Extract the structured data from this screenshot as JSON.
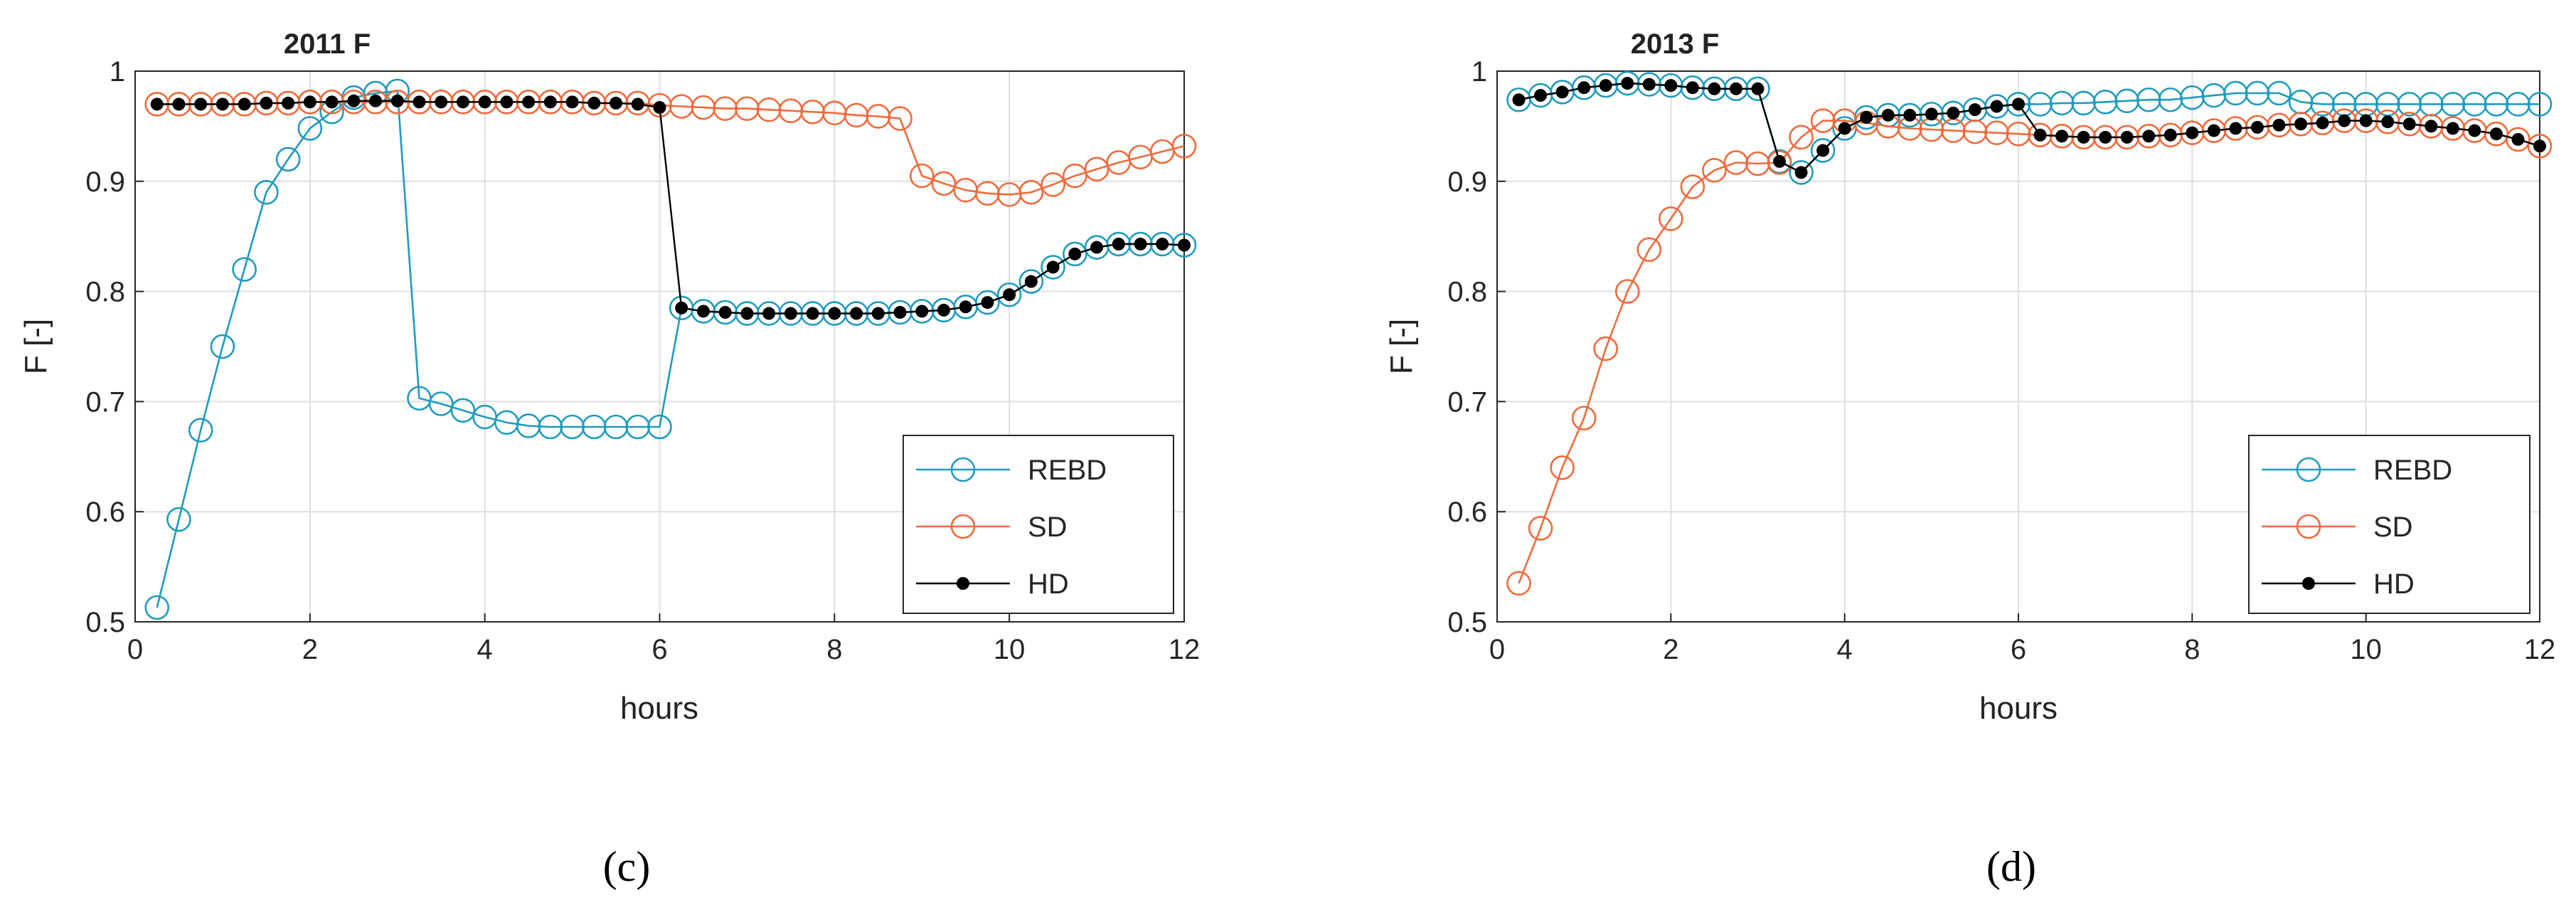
{
  "chart_data": [
    {
      "type": "line",
      "panel_label": "(c)",
      "title": "2011 F",
      "xlabel": "hours",
      "ylabel": "F [-]",
      "xlim": [
        0,
        12
      ],
      "ylim": [
        0.5,
        1
      ],
      "xticks": [
        0,
        2,
        4,
        6,
        8,
        10,
        12
      ],
      "yticks": [
        0.5,
        0.6,
        0.7,
        0.8,
        0.9,
        1
      ],
      "ytick_labels": [
        "0.5",
        "0.6",
        "0.7",
        "0.8",
        "0.9",
        "1"
      ],
      "grid": true,
      "legend_position": "lower-right",
      "x": [
        0.25,
        0.5,
        0.75,
        1.0,
        1.25,
        1.5,
        1.75,
        2.0,
        2.25,
        2.5,
        2.75,
        3.0,
        3.25,
        3.5,
        3.75,
        4.0,
        4.25,
        4.5,
        4.75,
        5.0,
        5.25,
        5.5,
        5.75,
        6.0,
        6.25,
        6.5,
        6.75,
        7.0,
        7.25,
        7.5,
        7.75,
        8.0,
        8.25,
        8.5,
        8.75,
        9.0,
        9.25,
        9.5,
        9.75,
        10.0,
        10.25,
        10.5,
        10.75,
        11.0,
        11.25,
        11.5,
        11.75,
        12.0
      ],
      "series": [
        {
          "name": "REBD",
          "color": "#1f9bbd",
          "marker": "circle-open",
          "values": [
            0.513,
            0.593,
            0.674,
            0.75,
            0.82,
            0.89,
            0.92,
            0.948,
            0.963,
            0.976,
            0.98,
            0.982,
            0.703,
            0.698,
            0.692,
            0.686,
            0.681,
            0.678,
            0.677,
            0.677,
            0.677,
            0.677,
            0.677,
            0.677,
            0.785,
            0.782,
            0.781,
            0.78,
            0.78,
            0.78,
            0.78,
            0.78,
            0.78,
            0.78,
            0.781,
            0.782,
            0.783,
            0.786,
            0.79,
            0.797,
            0.809,
            0.822,
            0.834,
            0.84,
            0.843,
            0.843,
            0.843,
            0.842
          ]
        },
        {
          "name": "SD",
          "color": "#ef6a3c",
          "marker": "circle-open",
          "values": [
            0.97,
            0.97,
            0.97,
            0.97,
            0.97,
            0.971,
            0.971,
            0.972,
            0.972,
            0.972,
            0.972,
            0.972,
            0.972,
            0.972,
            0.972,
            0.972,
            0.972,
            0.972,
            0.972,
            0.972,
            0.971,
            0.971,
            0.971,
            0.969,
            0.968,
            0.967,
            0.966,
            0.966,
            0.965,
            0.964,
            0.963,
            0.962,
            0.96,
            0.959,
            0.957,
            0.905,
            0.898,
            0.892,
            0.889,
            0.888,
            0.89,
            0.897,
            0.905,
            0.911,
            0.917,
            0.922,
            0.927,
            0.932
          ]
        },
        {
          "name": "HD",
          "color": "#000000",
          "marker": "dot",
          "values": [
            0.97,
            0.97,
            0.97,
            0.97,
            0.97,
            0.971,
            0.971,
            0.972,
            0.972,
            0.973,
            0.973,
            0.973,
            0.972,
            0.972,
            0.972,
            0.972,
            0.972,
            0.972,
            0.972,
            0.972,
            0.971,
            0.971,
            0.97,
            0.967,
            0.785,
            0.782,
            0.781,
            0.78,
            0.78,
            0.78,
            0.78,
            0.78,
            0.78,
            0.78,
            0.781,
            0.782,
            0.783,
            0.786,
            0.79,
            0.797,
            0.809,
            0.822,
            0.834,
            0.84,
            0.843,
            0.843,
            0.843,
            0.842
          ]
        }
      ]
    },
    {
      "type": "line",
      "panel_label": "(d)",
      "title": "2013 F",
      "xlabel": "hours",
      "ylabel": "F [-]",
      "xlim": [
        0,
        12
      ],
      "ylim": [
        0.5,
        1
      ],
      "xticks": [
        0,
        2,
        4,
        6,
        8,
        10,
        12
      ],
      "yticks": [
        0.5,
        0.6,
        0.7,
        0.8,
        0.9,
        1
      ],
      "ytick_labels": [
        "0.5",
        "0.6",
        "0.7",
        "0.8",
        "0.9",
        "1"
      ],
      "grid": true,
      "legend_position": "lower-right",
      "x": [
        0.25,
        0.5,
        0.75,
        1.0,
        1.25,
        1.5,
        1.75,
        2.0,
        2.25,
        2.5,
        2.75,
        3.0,
        3.25,
        3.5,
        3.75,
        4.0,
        4.25,
        4.5,
        4.75,
        5.0,
        5.25,
        5.5,
        5.75,
        6.0,
        6.25,
        6.5,
        6.75,
        7.0,
        7.25,
        7.5,
        7.75,
        8.0,
        8.25,
        8.5,
        8.75,
        9.0,
        9.25,
        9.5,
        9.75,
        10.0,
        10.25,
        10.5,
        10.75,
        11.0,
        11.25,
        11.5,
        11.75,
        12.0
      ],
      "series": [
        {
          "name": "REBD",
          "color": "#1f9bbd",
          "marker": "circle-open",
          "values": [
            0.974,
            0.978,
            0.981,
            0.985,
            0.987,
            0.989,
            0.988,
            0.987,
            0.985,
            0.984,
            0.984,
            0.984,
            0.918,
            0.908,
            0.928,
            0.948,
            0.958,
            0.96,
            0.96,
            0.961,
            0.962,
            0.965,
            0.968,
            0.97,
            0.97,
            0.971,
            0.971,
            0.972,
            0.973,
            0.974,
            0.974,
            0.976,
            0.978,
            0.98,
            0.98,
            0.98,
            0.972,
            0.97,
            0.97,
            0.97,
            0.97,
            0.97,
            0.97,
            0.97,
            0.97,
            0.97,
            0.97,
            0.97
          ]
        },
        {
          "name": "SD",
          "color": "#ef6a3c",
          "marker": "circle-open",
          "values": [
            0.535,
            0.585,
            0.64,
            0.685,
            0.748,
            0.8,
            0.838,
            0.866,
            0.895,
            0.91,
            0.917,
            0.916,
            0.917,
            0.94,
            0.955,
            0.955,
            0.953,
            0.95,
            0.948,
            0.947,
            0.946,
            0.945,
            0.944,
            0.943,
            0.942,
            0.941,
            0.94,
            0.94,
            0.94,
            0.941,
            0.942,
            0.944,
            0.946,
            0.948,
            0.949,
            0.951,
            0.952,
            0.953,
            0.955,
            0.955,
            0.954,
            0.952,
            0.95,
            0.948,
            0.946,
            0.943,
            0.938,
            0.932
          ]
        },
        {
          "name": "HD",
          "color": "#000000",
          "marker": "dot",
          "values": [
            0.974,
            0.978,
            0.981,
            0.985,
            0.987,
            0.989,
            0.988,
            0.987,
            0.985,
            0.984,
            0.984,
            0.984,
            0.918,
            0.908,
            0.928,
            0.948,
            0.958,
            0.96,
            0.96,
            0.961,
            0.962,
            0.965,
            0.968,
            0.97,
            0.942,
            0.941,
            0.94,
            0.94,
            0.94,
            0.941,
            0.942,
            0.944,
            0.946,
            0.948,
            0.949,
            0.951,
            0.952,
            0.953,
            0.955,
            0.955,
            0.954,
            0.952,
            0.95,
            0.948,
            0.946,
            0.943,
            0.938,
            0.932
          ]
        }
      ]
    }
  ]
}
